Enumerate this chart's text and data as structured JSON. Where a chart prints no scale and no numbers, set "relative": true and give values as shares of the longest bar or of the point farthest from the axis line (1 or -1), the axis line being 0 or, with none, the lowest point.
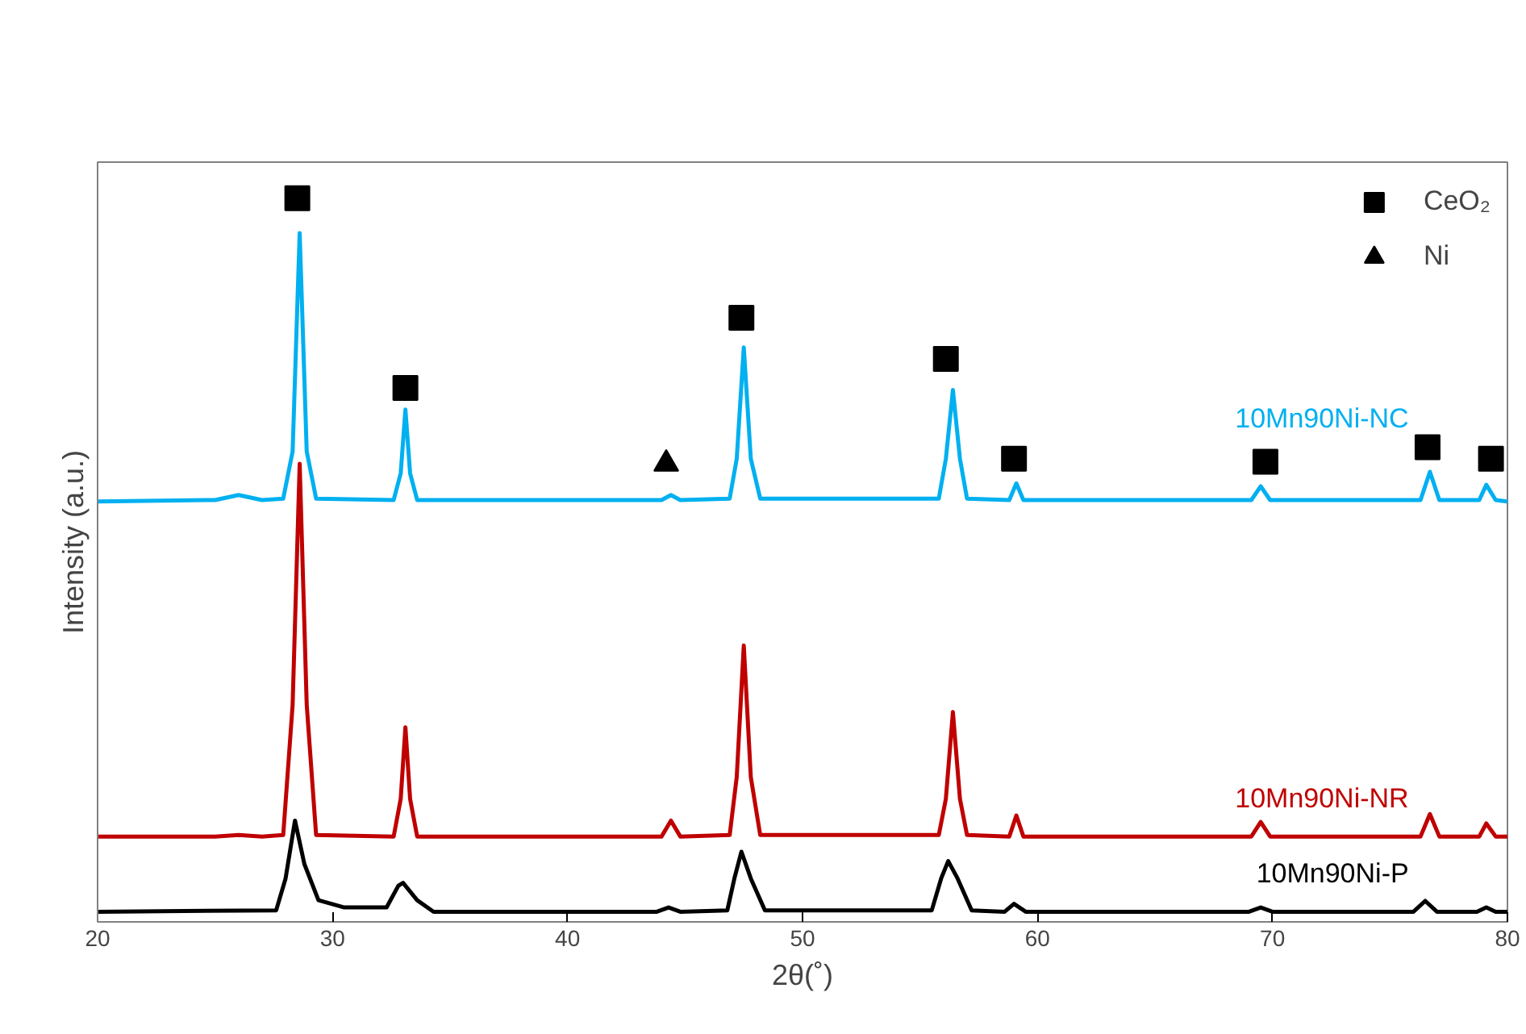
{
  "chart_data": {
    "type": "line",
    "relative": true,
    "xlabel": "2θ(˚)",
    "ylabel": "Intensity (a.u.)",
    "xlim": [
      20,
      80
    ],
    "xticks": [
      20,
      30,
      40,
      50,
      60,
      70,
      80
    ],
    "grid": false,
    "legend": "top right",
    "tick_labels": "x",
    "series": [
      {
        "name": "10Mn90Ni-NC",
        "color": "#00b0f0",
        "x": [
          20,
          25,
          26,
          27,
          27.9,
          28.3,
          28.6,
          28.9,
          29.3,
          32.6,
          32.9,
          33.1,
          33.3,
          33.6,
          44.0,
          44.4,
          44.8,
          46.9,
          47.2,
          47.5,
          47.8,
          48.2,
          55.8,
          56.1,
          56.4,
          56.7,
          57.0,
          58.8,
          59.1,
          59.4,
          69.1,
          69.5,
          69.9,
          76.3,
          76.7,
          77.1,
          78.8,
          79.1,
          79.5,
          80
        ],
        "values": [
          0.581,
          0.583,
          0.59,
          0.583,
          0.585,
          0.65,
          0.952,
          0.65,
          0.585,
          0.583,
          0.62,
          0.708,
          0.62,
          0.583,
          0.583,
          0.59,
          0.583,
          0.585,
          0.64,
          0.794,
          0.64,
          0.585,
          0.585,
          0.64,
          0.735,
          0.64,
          0.585,
          0.583,
          0.606,
          0.583,
          0.583,
          0.602,
          0.583,
          0.583,
          0.622,
          0.583,
          0.583,
          0.604,
          0.583,
          0.581
        ]
      },
      {
        "name": "10Mn90Ni-NR",
        "color": "#c00000",
        "x": [
          20,
          25,
          26,
          27,
          27.9,
          28.3,
          28.6,
          28.9,
          29.3,
          32.6,
          32.9,
          33.1,
          33.3,
          33.6,
          44.0,
          44.4,
          44.8,
          46.9,
          47.2,
          47.5,
          47.8,
          48.2,
          55.8,
          56.1,
          56.4,
          56.7,
          57.0,
          58.8,
          59.1,
          59.4,
          69.1,
          69.5,
          69.9,
          76.3,
          76.7,
          77.1,
          78.8,
          79.1,
          79.5,
          80
        ],
        "values": [
          0.118,
          0.118,
          0.12,
          0.118,
          0.12,
          0.3,
          0.633,
          0.3,
          0.12,
          0.118,
          0.17,
          0.269,
          0.17,
          0.118,
          0.118,
          0.14,
          0.118,
          0.12,
          0.2,
          0.382,
          0.2,
          0.12,
          0.12,
          0.17,
          0.29,
          0.17,
          0.12,
          0.118,
          0.147,
          0.118,
          0.118,
          0.138,
          0.118,
          0.118,
          0.149,
          0.118,
          0.118,
          0.136,
          0.118,
          0.118
        ]
      },
      {
        "name": "10Mn90Ni-P",
        "color": "#000000",
        "x": [
          20,
          27.6,
          28.0,
          28.4,
          28.8,
          29.4,
          30.5,
          32.3,
          32.8,
          33.0,
          33.6,
          34.3,
          43.8,
          44.3,
          44.8,
          46.8,
          47.1,
          47.4,
          47.8,
          48.4,
          55.5,
          55.9,
          56.2,
          56.6,
          57.2,
          58.6,
          59,
          59.5,
          69,
          69.5,
          70,
          76,
          76.5,
          77,
          78.7,
          79.1,
          79.5,
          80
        ],
        "values": [
          0.014,
          0.016,
          0.06,
          0.14,
          0.08,
          0.03,
          0.02,
          0.02,
          0.05,
          0.054,
          0.03,
          0.014,
          0.014,
          0.02,
          0.014,
          0.016,
          0.06,
          0.097,
          0.06,
          0.016,
          0.016,
          0.06,
          0.084,
          0.06,
          0.016,
          0.014,
          0.025,
          0.014,
          0.014,
          0.02,
          0.014,
          0.014,
          0.029,
          0.014,
          0.014,
          0.02,
          0.014,
          0.014
        ]
      },
      {
        "name": "CeO₂",
        "type": "scatter",
        "marker": "square",
        "color": "#000000",
        "x": [
          28.5,
          33.1,
          47.4,
          56.1,
          59,
          69.7,
          76.6,
          79.3
        ],
        "values": [
          1.0,
          0.738,
          0.835,
          0.778,
          0.64,
          0.636,
          0.656,
          0.64
        ]
      },
      {
        "name": "Ni",
        "type": "scatter",
        "marker": "triangle",
        "color": "#000000",
        "x": [
          44.2
        ],
        "values": [
          0.633
        ]
      }
    ]
  }
}
